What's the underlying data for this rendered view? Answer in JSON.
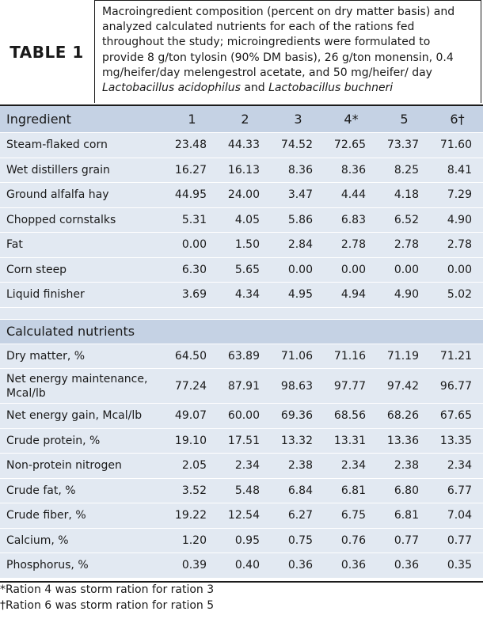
{
  "caption": {
    "label": "TABLE 1",
    "text_before": "Macroingredient composition (percent on dry matter basis) and analyzed calculated nutrients for each of the rations fed throughout the study; microingredients were formulated to provide 8 g/ton tylosin (90% DM basis), 26 g/ton monensin, 0.4 mg/heifer/day melengestrol acetate, and 50 mg/heifer/ day ",
    "italic_1": "Lactobacillus acidophilus",
    "connector": " and ",
    "italic_2": "Lactobacillus buchneri"
  },
  "header": {
    "label": "Ingredient",
    "columns": [
      "1",
      "2",
      "3",
      "4*",
      "5",
      "6†"
    ]
  },
  "ingredients": [
    {
      "name": "Steam-flaked corn",
      "values": [
        "23.48",
        "44.33",
        "74.52",
        "72.65",
        "73.37",
        "71.60"
      ]
    },
    {
      "name": "Wet distillers grain",
      "values": [
        "16.27",
        "16.13",
        "8.36",
        "8.36",
        "8.25",
        "8.41"
      ]
    },
    {
      "name": "Ground alfalfa hay",
      "values": [
        "44.95",
        "24.00",
        "3.47",
        "4.44",
        "4.18",
        "7.29"
      ]
    },
    {
      "name": "Chopped cornstalks",
      "values": [
        "5.31",
        "4.05",
        "5.86",
        "6.83",
        "6.52",
        "4.90"
      ]
    },
    {
      "name": "Fat",
      "values": [
        "0.00",
        "1.50",
        "2.84",
        "2.78",
        "2.78",
        "2.78"
      ]
    },
    {
      "name": "Corn steep",
      "values": [
        "6.30",
        "5.65",
        "0.00",
        "0.00",
        "0.00",
        "0.00"
      ]
    },
    {
      "name": "Liquid finisher",
      "values": [
        "3.69",
        "4.34",
        "4.95",
        "4.94",
        "4.90",
        "5.02"
      ]
    }
  ],
  "nutrients_heading": "Calculated nutrients",
  "nutrients": [
    {
      "name": "Dry matter, %",
      "values": [
        "64.50",
        "63.89",
        "71.06",
        "71.16",
        "71.19",
        "71.21"
      ]
    },
    {
      "name": "Net energy maintenance, Mcal/lb",
      "values": [
        "77.24",
        "87.91",
        "98.63",
        "97.77",
        "97.42",
        "96.77"
      ]
    },
    {
      "name": "Net energy gain, Mcal/lb",
      "values": [
        "49.07",
        "60.00",
        "69.36",
        "68.56",
        "68.26",
        "67.65"
      ]
    },
    {
      "name": "Crude protein, %",
      "values": [
        "19.10",
        "17.51",
        "13.32",
        "13.31",
        "13.36",
        "13.35"
      ]
    },
    {
      "name": "Non-protein nitrogen",
      "values": [
        "2.05",
        "2.34",
        "2.38",
        "2.34",
        "2.38",
        "2.34"
      ]
    },
    {
      "name": "Crude fat, %",
      "values": [
        "3.52",
        "5.48",
        "6.84",
        "6.81",
        "6.80",
        "6.77"
      ]
    },
    {
      "name": "Crude fiber, %",
      "values": [
        "19.22",
        "12.54",
        "6.27",
        "6.75",
        "6.81",
        "7.04"
      ]
    },
    {
      "name": "Calcium, %",
      "values": [
        "1.20",
        "0.95",
        "0.75",
        "0.76",
        "0.77",
        "0.77"
      ]
    },
    {
      "name": "Phosphorus, %",
      "values": [
        "0.39",
        "0.40",
        "0.36",
        "0.36",
        "0.36",
        "0.35"
      ]
    }
  ],
  "footnotes": [
    "*Ration 4 was storm ration for ration 3",
    "†Ration 6 was storm ration for ration 5"
  ]
}
